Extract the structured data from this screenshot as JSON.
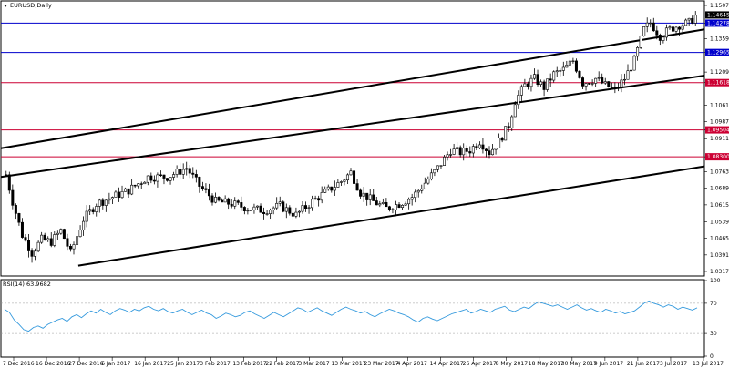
{
  "window": {
    "title": "EURUSD,Daily",
    "menu_icon": "triangle-down-icon"
  },
  "chart_data": [
    {
      "type": "candlestick",
      "title": "EURUSD,Daily",
      "ylim": [
        1.0317,
        1.1507
      ],
      "y_ticks": [
        "1.15070",
        "1.14645",
        "1.14278",
        "1.13590",
        "1.12965",
        "1.12090",
        "1.11618",
        "1.10610",
        "1.09870",
        "1.09504",
        "1.09110",
        "1.08300",
        "1.07630",
        "1.06890",
        "1.06150",
        "1.05390",
        "1.04650",
        "1.03910",
        "1.03170"
      ],
      "x_labels": [
        "7 Dec 2016",
        "16 Dec 2016",
        "27 Dec 2016",
        "6 Jan 2017",
        "16 Jan 2017",
        "25 Jan 2017",
        "3 Feb 2017",
        "13 Feb 2017",
        "22 Feb 2017",
        "3 Mar 2017",
        "13 Mar 2017",
        "23 Mar 2017",
        "4 Apr 2017",
        "14 Apr 2017",
        "26 Apr 2017",
        "8 May 2017",
        "18 May 2017",
        "30 May 2017",
        "9 Jun 2017",
        "21 Jun 2017",
        "3 Jul 2017",
        "13 Jul 2017"
      ],
      "current_price": "1.14645",
      "horizontal_levels": [
        {
          "value": "1.14278",
          "color": "#0000cc"
        },
        {
          "value": "1.12965",
          "color": "#0000cc"
        },
        {
          "value": "1.11618",
          "color": "#cc0033"
        },
        {
          "value": "1.09504",
          "color": "#cc0033"
        },
        {
          "value": "1.08300",
          "color": "#cc0033"
        }
      ],
      "trend_channel": [
        {
          "name": "upper",
          "from": [
            0,
            1.0868
          ],
          "to": [
            1,
            1.14
          ]
        },
        {
          "name": "middle",
          "from": [
            0,
            1.074
          ],
          "to": [
            1,
            1.1193
          ]
        },
        {
          "name": "lower",
          "from": [
            0.11,
            1.0343
          ],
          "to": [
            1,
            1.0787
          ]
        }
      ]
    },
    {
      "type": "line",
      "title": "RSI(14) 63.9682",
      "ylim": [
        0,
        100
      ],
      "y_ticks": [
        "100",
        "70",
        "30",
        "0"
      ],
      "levels": [
        70,
        30
      ],
      "series_color": "#3399dd",
      "values": [
        62,
        58,
        48,
        42,
        35,
        33,
        38,
        40,
        37,
        42,
        45,
        48,
        50,
        46,
        52,
        55,
        51,
        56,
        60,
        57,
        62,
        58,
        55,
        60,
        63,
        61,
        58,
        62,
        60,
        64,
        66,
        62,
        60,
        63,
        59,
        57,
        60,
        62,
        58,
        55,
        58,
        61,
        57,
        55,
        50,
        53,
        57,
        55,
        52,
        54,
        58,
        60,
        56,
        53,
        50,
        54,
        58,
        55,
        52,
        56,
        60,
        64,
        62,
        58,
        61,
        64,
        60,
        57,
        54,
        58,
        62,
        65,
        62,
        60,
        57,
        59,
        55,
        52,
        56,
        59,
        62,
        60,
        57,
        55,
        52,
        48,
        45,
        50,
        52,
        49,
        47,
        50,
        53,
        56,
        58,
        60,
        62,
        57,
        59,
        62,
        60,
        58,
        62,
        64,
        66,
        61,
        59,
        62,
        65,
        63,
        68,
        72,
        70,
        68,
        66,
        68,
        65,
        62,
        65,
        68,
        64,
        61,
        63,
        60,
        58,
        62,
        60,
        57,
        59,
        56,
        58,
        60,
        65,
        70,
        73,
        70,
        68,
        65,
        68,
        66,
        62,
        65,
        63,
        61,
        64
      ],
      "last_value": "63.9682"
    }
  ],
  "colors": {
    "background": "#ffffff",
    "candle": "#000000",
    "blue_level": "#0000cc",
    "red_level": "#cc0033",
    "rsi": "#3399dd"
  }
}
